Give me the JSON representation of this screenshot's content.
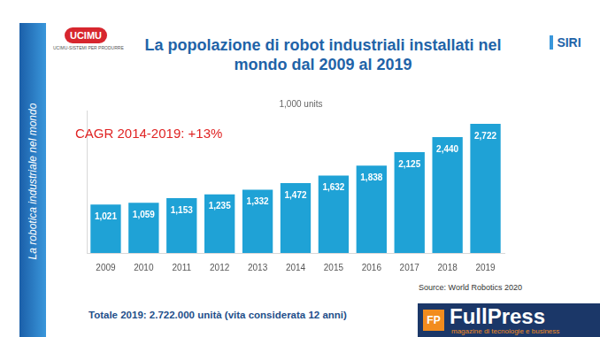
{
  "chart_data": {
    "type": "bar",
    "title": "La popolazione di robot industriali installati nel mondo dal 2009 al 2019",
    "subtitle": "1,000 units",
    "annotations": [
      "CAGR 2014-2019: +13%"
    ],
    "source": "Source: World Robotics 2020",
    "note": "Totale 2019: 2.722.000 unità (vita considerata 12 anni)",
    "categories": [
      "2009",
      "2010",
      "2011",
      "2012",
      "2013",
      "2014",
      "2015",
      "2016",
      "2017",
      "2018",
      "2019"
    ],
    "values": [
      1021,
      1059,
      1153,
      1235,
      1332,
      1472,
      1632,
      1838,
      2125,
      2440,
      2722
    ],
    "value_labels": [
      "1,021",
      "1,059",
      "1,153",
      "1,235",
      "1,332",
      "1,472",
      "1,632",
      "1,838",
      "2,125",
      "2,440",
      "2,722"
    ],
    "color": "#1fa2d6",
    "ylim": [
      0,
      3000
    ],
    "grid": false,
    "data_labels": true,
    "tick_labels": "x"
  },
  "page": {
    "sidebar": "La robotica industriale nel mondo",
    "logos": [
      "UCIMU",
      "UCIMU-SISTEMI PER PRODURRE",
      "SIRI",
      "FP",
      "FullPress",
      "magazine di tecnologie e business"
    ]
  }
}
